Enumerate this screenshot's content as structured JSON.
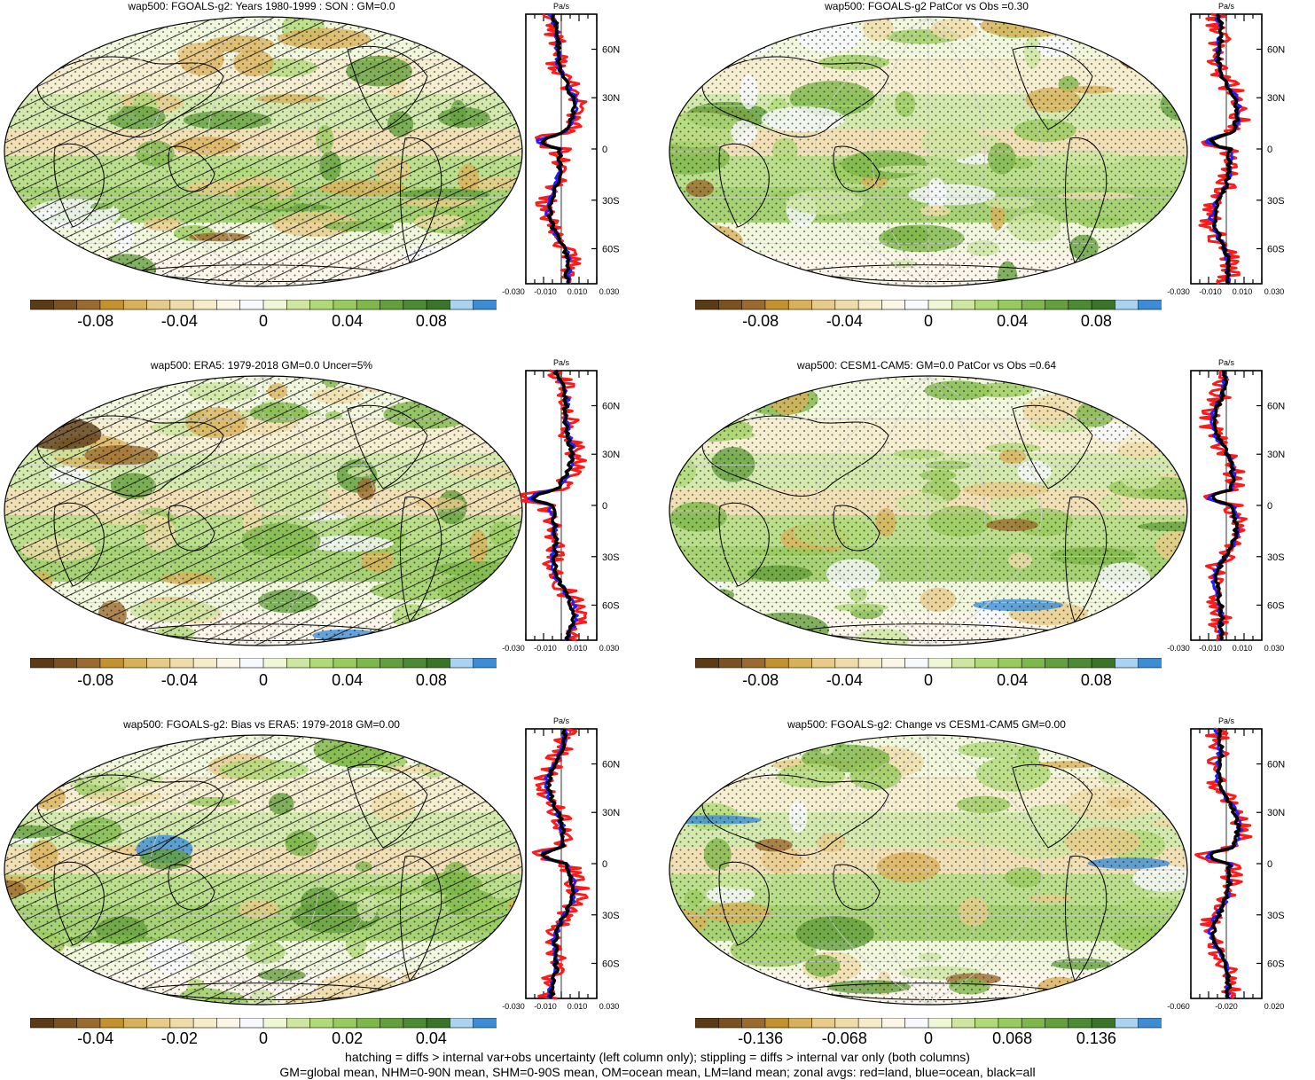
{
  "palette": [
    "#5b3a16",
    "#7c5120",
    "#9b6a2e",
    "#c4912f",
    "#d9b05a",
    "#e8cb88",
    "#f0dca8",
    "#f6ecc9",
    "#fbf6e5",
    "#f8f9fe",
    "#eff7d6",
    "#cde6a0",
    "#b0d978",
    "#98cb5d",
    "#7eb74a",
    "#649f3d",
    "#4c8a33",
    "#3a7429",
    "#a9d3f0",
    "#3d8dd6"
  ],
  "panels": [
    {
      "id": "p1",
      "title": "wap500: FGOALS-g2: Years 1980-1999 : SON : GM=0.0",
      "hatch": true,
      "cbar_labels": [
        "-0.08",
        "-0.04",
        "0",
        "0.04",
        "0.08"
      ],
      "zonal_ticks": [
        "-0.030",
        "-0.010",
        "0.010",
        "0.030"
      ],
      "lat_labels": [
        "60N",
        "30N",
        "0",
        "30S",
        "60S"
      ],
      "unit": "Pa/s",
      "seed": 11
    },
    {
      "id": "p2",
      "title": "wap500: FGOALS-g2 PatCor vs Obs =0.30",
      "hatch": false,
      "cbar_labels": [
        "-0.08",
        "-0.04",
        "0",
        "0.04",
        "0.08"
      ],
      "zonal_ticks": [
        "-0.030",
        "-0.010",
        "0.010",
        "0.030"
      ],
      "lat_labels": [
        "60N",
        "30N",
        "0",
        "30S",
        "60S"
      ],
      "unit": "Pa/s",
      "seed": 23
    },
    {
      "id": "p3",
      "title": "wap500: ERA5: 1979-2018 GM=0.0 Uncer=5%",
      "hatch": true,
      "cbar_labels": [
        "-0.08",
        "-0.04",
        "0",
        "0.04",
        "0.08"
      ],
      "zonal_ticks": [
        "-0.030",
        "-0.010",
        "0.010",
        "0.030"
      ],
      "lat_labels": [
        "60N",
        "30N",
        "0",
        "30S",
        "60S"
      ],
      "unit": "Pa/s",
      "seed": 37
    },
    {
      "id": "p4",
      "title": "wap500: CESM1-CAM5: GM=0.0 PatCor vs Obs =0.64",
      "hatch": false,
      "cbar_labels": [
        "-0.08",
        "-0.04",
        "0",
        "0.04",
        "0.08"
      ],
      "zonal_ticks": [
        "-0.030",
        "-0.010",
        "0.010",
        "0.030"
      ],
      "lat_labels": [
        "60N",
        "30N",
        "0",
        "30S",
        "60S"
      ],
      "unit": "Pa/s",
      "seed": 41
    },
    {
      "id": "p5",
      "title": "wap500: FGOALS-g2: Bias vs ERA5: 1979-2018  GM=0.00",
      "hatch": true,
      "cbar_labels": [
        "-0.04",
        "-0.02",
        "0",
        "0.02",
        "0.04"
      ],
      "zonal_ticks": [
        "-0.030",
        "-0.010",
        "0.010",
        "0.030"
      ],
      "lat_labels": [
        "60N",
        "30N",
        "0",
        "30S",
        "60S"
      ],
      "unit": "Pa/s",
      "seed": 53
    },
    {
      "id": "p6",
      "title": "wap500: FGOALS-g2: Change vs CESM1-CAM5 GM=0.00",
      "hatch": false,
      "cbar_labels": [
        "-0.136",
        "-0.068",
        "0",
        "0.068",
        "0.136"
      ],
      "zonal_ticks": [
        "-0.060",
        "-0.020",
        "0.020"
      ],
      "lat_labels": [
        "60N",
        "30N",
        "0",
        "30S",
        "60S"
      ],
      "unit": "Pa/s",
      "seed": 67
    }
  ],
  "footer": {
    "line1": "hatching = diffs > internal var+obs uncertainty (left column only); stippling = diffs > internal var only (both columns)",
    "line2": "GM=global mean, NHM=0-90N mean, SHM=0-90S mean, OM=ocean mean, LM=land mean; zonal avgs: red=land, blue=ocean, black=all"
  },
  "chart_data": [
    {
      "type": "heatmap",
      "title": "wap500: FGOALS-g2: Years 1980-1999 : SON : GM=0.0",
      "unit": "Pa/s",
      "colorbar_ticks": [
        -0.08,
        -0.04,
        0,
        0.04,
        0.08
      ],
      "zonal_mean_xticks": [
        -0.03,
        -0.01,
        0.01,
        0.03
      ],
      "zonal_mean_yticks": [
        "60N",
        "30N",
        "0",
        "30S",
        "60S"
      ],
      "zonal_series": [
        "land",
        "ocean",
        "all"
      ]
    },
    {
      "type": "heatmap",
      "title": "wap500: FGOALS-g2 PatCor vs Obs =0.30",
      "unit": "Pa/s",
      "colorbar_ticks": [
        -0.08,
        -0.04,
        0,
        0.04,
        0.08
      ],
      "zonal_mean_xticks": [
        -0.03,
        -0.01,
        0.01,
        0.03
      ],
      "zonal_mean_yticks": [
        "60N",
        "30N",
        "0",
        "30S",
        "60S"
      ],
      "zonal_series": [
        "land",
        "ocean",
        "all"
      ]
    },
    {
      "type": "heatmap",
      "title": "wap500: ERA5: 1979-2018 GM=0.0 Uncer=5%",
      "unit": "Pa/s",
      "colorbar_ticks": [
        -0.08,
        -0.04,
        0,
        0.04,
        0.08
      ],
      "zonal_mean_xticks": [
        -0.03,
        -0.01,
        0.01,
        0.03
      ],
      "zonal_mean_yticks": [
        "60N",
        "30N",
        "0",
        "30S",
        "60S"
      ],
      "zonal_series": [
        "land",
        "ocean",
        "all"
      ]
    },
    {
      "type": "heatmap",
      "title": "wap500: CESM1-CAM5: GM=0.0 PatCor vs Obs =0.64",
      "unit": "Pa/s",
      "colorbar_ticks": [
        -0.08,
        -0.04,
        0,
        0.04,
        0.08
      ],
      "zonal_mean_xticks": [
        -0.03,
        -0.01,
        0.01,
        0.03
      ],
      "zonal_mean_yticks": [
        "60N",
        "30N",
        "0",
        "30S",
        "60S"
      ],
      "zonal_series": [
        "land",
        "ocean",
        "all"
      ]
    },
    {
      "type": "heatmap",
      "title": "wap500: FGOALS-g2: Bias vs ERA5: 1979-2018  GM=0.00",
      "unit": "Pa/s",
      "colorbar_ticks": [
        -0.04,
        -0.02,
        0,
        0.02,
        0.04
      ],
      "zonal_mean_xticks": [
        -0.03,
        -0.01,
        0.01,
        0.03
      ],
      "zonal_mean_yticks": [
        "60N",
        "30N",
        "0",
        "30S",
        "60S"
      ],
      "zonal_series": [
        "land",
        "ocean",
        "all"
      ]
    },
    {
      "type": "heatmap",
      "title": "wap500: FGOALS-g2: Change vs CESM1-CAM5 GM=0.00",
      "unit": "Pa/s",
      "colorbar_ticks": [
        -0.136,
        -0.068,
        0,
        0.068,
        0.136
      ],
      "zonal_mean_xticks": [
        -0.06,
        -0.02,
        0.02
      ],
      "zonal_mean_yticks": [
        "60N",
        "30N",
        "0",
        "30S",
        "60S"
      ],
      "zonal_series": [
        "land",
        "ocean",
        "all"
      ]
    }
  ]
}
